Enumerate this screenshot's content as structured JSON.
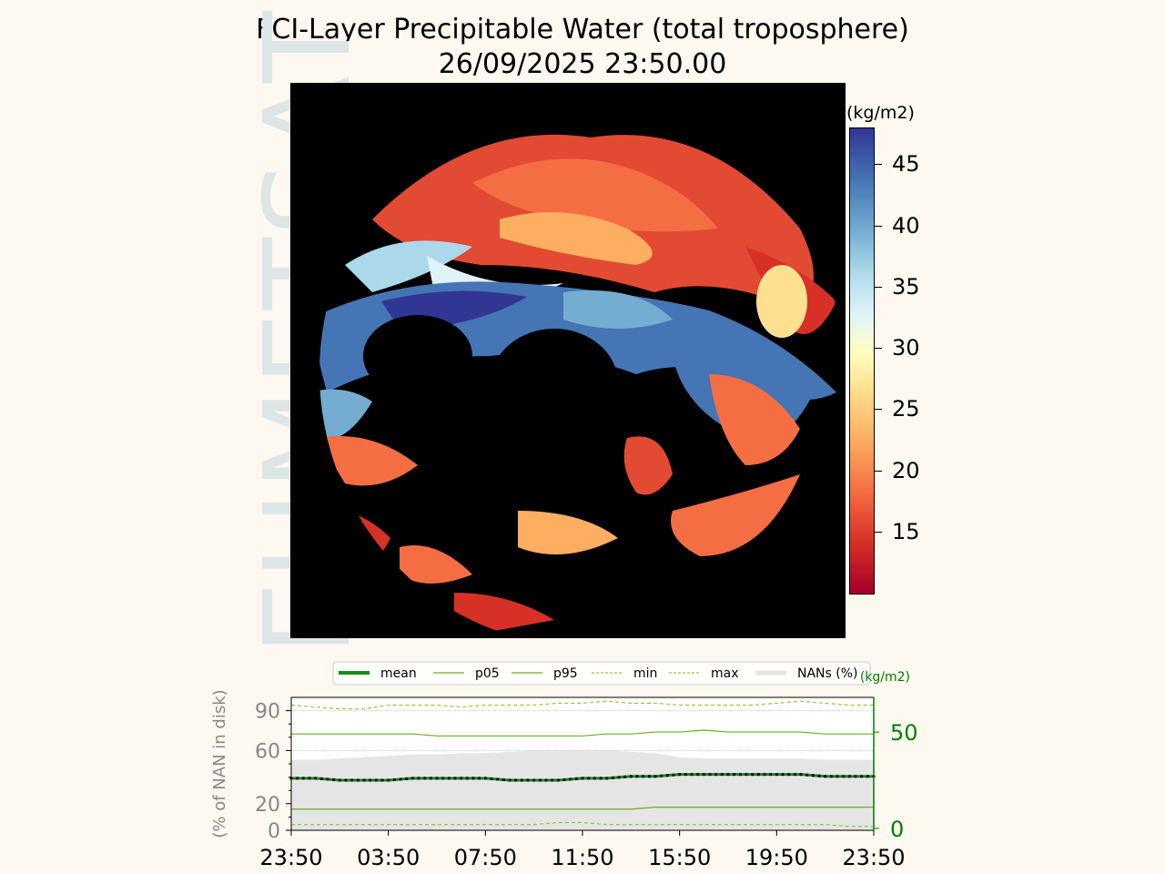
{
  "title_line1": "FCI-Layer Precipitable Water (total troposphere)",
  "title_line2": "26/09/2025 23:50.00",
  "watermark": "EUMETSAT",
  "colorbar": {
    "unit": "(kg/m2)",
    "ticks": [
      15,
      20,
      25,
      30,
      35,
      40,
      45
    ],
    "range": [
      10,
      48
    ],
    "colormap": "RdYlBu",
    "colors": [
      "#a50026",
      "#f46d43",
      "#ffffbf",
      "#74add1",
      "#313695"
    ]
  },
  "disk_image": {
    "background": "#000000"
  },
  "chart_data": {
    "type": "line",
    "x": [
      "23:50",
      "00:50",
      "01:50",
      "02:50",
      "03:50",
      "04:50",
      "05:50",
      "06:50",
      "07:50",
      "08:50",
      "09:50",
      "10:50",
      "11:50",
      "12:50",
      "13:50",
      "14:50",
      "15:50",
      "16:50",
      "17:50",
      "18:50",
      "19:50",
      "20:50",
      "21:50",
      "22:50",
      "23:50"
    ],
    "x_ticks": [
      "23:50",
      "03:50",
      "07:50",
      "11:50",
      "15:50",
      "19:50",
      "23:50"
    ],
    "left_axis": {
      "label": "(% of NAN in disk)",
      "ticks": [
        0,
        20,
        60,
        90
      ],
      "ylim": [
        0,
        100
      ],
      "color": "#888888"
    },
    "right_axis": {
      "label": "(kg/m2)",
      "ticks": [
        0,
        50
      ],
      "ylim": [
        -1,
        68
      ],
      "color": "#008000"
    },
    "legend": [
      "mean",
      "p05",
      "p95",
      "min",
      "max",
      "NANs (%)"
    ],
    "legend_placement": "top",
    "series": [
      {
        "name": "NANs (%)",
        "axis": "left",
        "style": "fill",
        "color": "#e5e5e5",
        "values": [
          53,
          53,
          54,
          55,
          56,
          57,
          57,
          58,
          58,
          59,
          60,
          60,
          60,
          60,
          59,
          58,
          55,
          54,
          54,
          54,
          54,
          54,
          53,
          53,
          53
        ]
      },
      {
        "name": "max",
        "axis": "right",
        "style": "dashed",
        "color": "#8fcc33",
        "values": [
          64,
          63,
          62,
          62,
          64,
          64,
          64,
          63,
          64,
          64,
          64,
          65,
          65,
          66,
          65,
          65,
          64,
          64,
          64,
          64,
          65,
          66,
          65,
          64,
          64
        ]
      },
      {
        "name": "p95",
        "axis": "right",
        "style": "solid",
        "color": "#6aaf1e",
        "values": [
          49,
          49,
          49,
          49,
          49,
          49,
          48,
          48,
          48,
          48,
          48,
          48,
          48,
          49,
          49,
          50,
          50,
          51,
          50,
          50,
          50,
          50,
          49,
          49,
          49
        ]
      },
      {
        "name": "mean",
        "axis": "right",
        "style": "thick",
        "color": "#1a8a1a",
        "values": [
          26,
          26,
          25,
          25,
          25,
          26,
          26,
          26,
          26,
          25,
          25,
          25,
          26,
          26,
          27,
          27,
          28,
          28,
          28,
          28,
          28,
          28,
          27,
          27,
          27
        ]
      },
      {
        "name": "p05",
        "axis": "right",
        "style": "solid",
        "color": "#6aaf1e",
        "values": [
          10,
          10,
          10,
          10,
          10,
          10,
          10,
          10,
          10,
          10,
          10,
          10,
          10,
          10,
          10,
          11,
          11,
          11,
          11,
          11,
          11,
          11,
          11,
          11,
          11
        ]
      },
      {
        "name": "min",
        "axis": "right",
        "style": "dashed",
        "color": "#8fcc33",
        "values": [
          2,
          2,
          2,
          2,
          2,
          2,
          2,
          2,
          2,
          2,
          2,
          3,
          3,
          2,
          2,
          2,
          2,
          2,
          2,
          2,
          2,
          2,
          2,
          1,
          1
        ]
      }
    ],
    "gridlines_left": [
      90,
      60
    ]
  }
}
